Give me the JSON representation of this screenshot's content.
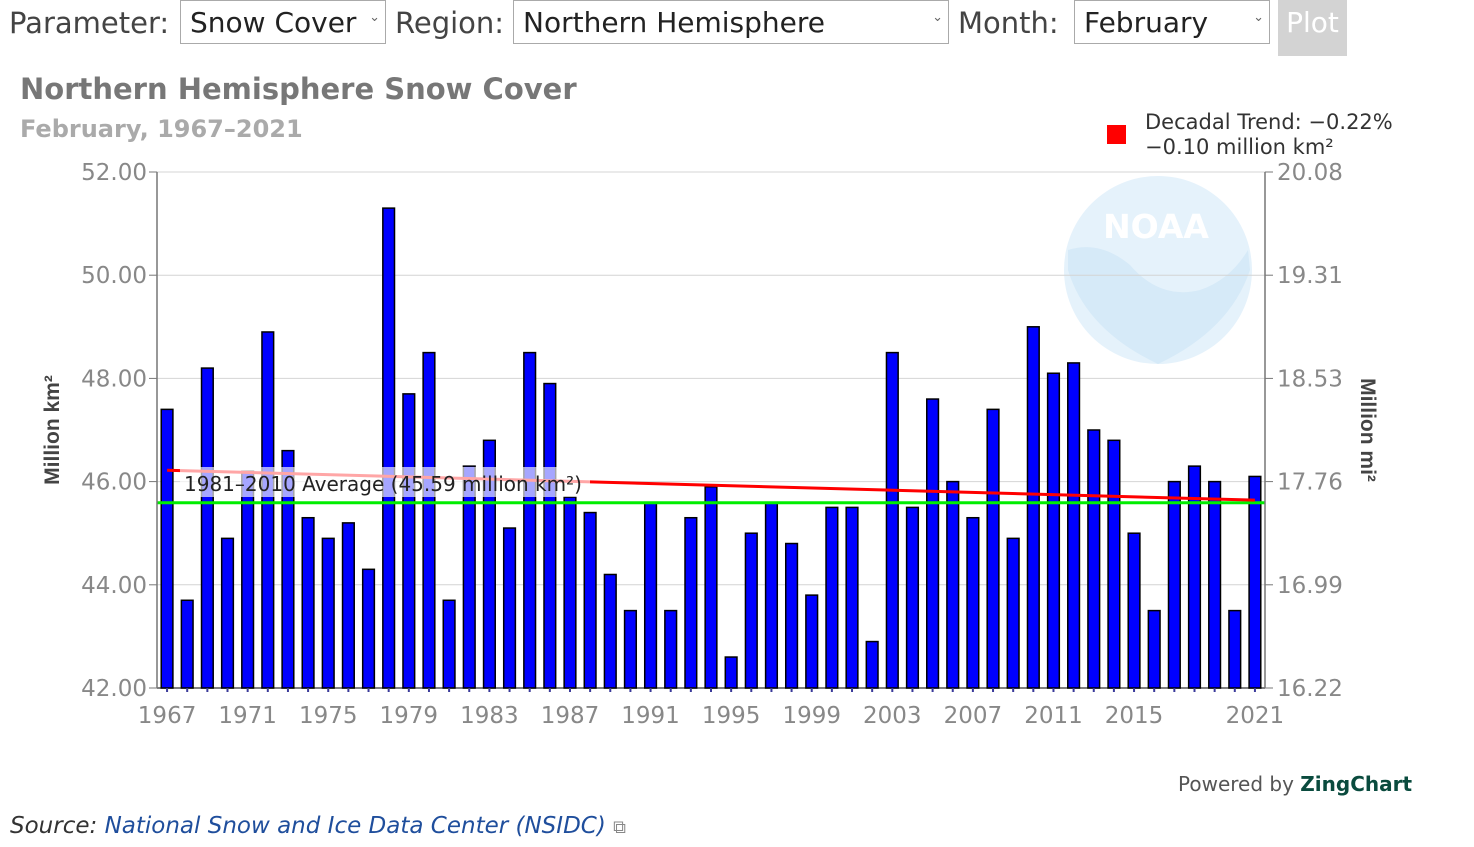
{
  "controls": {
    "parameter_label": "Parameter:",
    "parameter_value": "Snow Cover",
    "region_label": "Region:",
    "region_value": "Northern Hemisphere",
    "month_label": "Month:",
    "month_value": "February",
    "plot_label": "Plot"
  },
  "watermark": "NOAA",
  "footer": {
    "powered_prefix": "Powered by",
    "powered_brand": "ZingChart",
    "source_prefix": "Source:",
    "source_link": "National Snow and Ice Data Center (NSIDC)"
  },
  "colors": {
    "bars": "#0000ff",
    "trend": "#ff0000",
    "average": "#00ee00"
  },
  "chart_data": {
    "type": "bar",
    "title": "Northern Hemisphere Snow Cover",
    "subtitle": "February, 1967–2021",
    "ylabel": "Million km²",
    "ylabel_right": "Million mi²",
    "ylim": [
      42,
      52
    ],
    "yticks": [
      "42.00",
      "44.00",
      "46.00",
      "48.00",
      "50.00",
      "52.00"
    ],
    "yticks_right": [
      "16.22",
      "16.99",
      "17.76",
      "18.53",
      "19.31",
      "20.08"
    ],
    "xticks": [
      "1967",
      "1971",
      "1975",
      "1979",
      "1983",
      "1987",
      "1991",
      "1995",
      "1999",
      "2003",
      "2007",
      "2011",
      "2015",
      "2021"
    ],
    "grid": true,
    "legend_position": "top-right",
    "legend": {
      "line1": "Decadal Trend: −0.22%",
      "line2": "−0.10 million km²"
    },
    "average_label": "1981–2010 Average (45.59 million km²)",
    "average_value": 45.59,
    "trend": {
      "start": 46.22,
      "end": 45.64
    },
    "years": [
      1967,
      1968,
      1969,
      1970,
      1971,
      1972,
      1973,
      1974,
      1975,
      1976,
      1977,
      1978,
      1979,
      1980,
      1981,
      1982,
      1983,
      1984,
      1985,
      1986,
      1987,
      1988,
      1989,
      1990,
      1991,
      1992,
      1993,
      1994,
      1995,
      1996,
      1997,
      1998,
      1999,
      2000,
      2001,
      2002,
      2003,
      2004,
      2005,
      2006,
      2007,
      2008,
      2009,
      2010,
      2011,
      2012,
      2013,
      2014,
      2015,
      2016,
      2017,
      2018,
      2019,
      2020,
      2021
    ],
    "values": [
      47.4,
      43.7,
      48.2,
      44.9,
      46.2,
      48.9,
      46.6,
      45.3,
      44.9,
      45.2,
      44.3,
      51.3,
      47.7,
      48.5,
      43.7,
      46.3,
      46.8,
      45.1,
      48.5,
      47.9,
      45.7,
      45.4,
      44.2,
      43.5,
      45.6,
      43.5,
      45.3,
      45.9,
      42.6,
      45.0,
      45.6,
      44.8,
      43.8,
      45.5,
      45.5,
      42.9,
      48.5,
      45.5,
      47.6,
      46.0,
      45.3,
      47.4,
      44.9,
      49.0,
      48.1,
      48.3,
      47.0,
      46.8,
      45.0,
      43.5,
      46.0,
      46.3,
      46.0,
      43.5,
      46.1
    ]
  }
}
